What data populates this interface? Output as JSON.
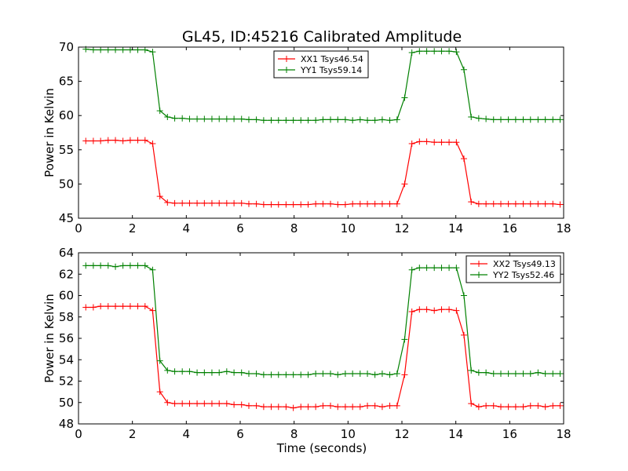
{
  "chart_data": [
    {
      "type": "line",
      "title": "GL45, ID:45216 Calibrated Amplitude",
      "xlabel": "",
      "ylabel": "Power in Kelvin",
      "xlim": [
        0,
        18
      ],
      "ylim": [
        45,
        70
      ],
      "xticks": [
        "0",
        "2",
        "4",
        "6",
        "8",
        "10",
        "12",
        "14",
        "16",
        "18"
      ],
      "yticks": [
        "45",
        "50",
        "55",
        "60",
        "65",
        "70"
      ],
      "grid": false,
      "legend": "upper-center",
      "x": [
        0.27,
        0.55,
        0.82,
        1.1,
        1.37,
        1.65,
        1.92,
        2.2,
        2.47,
        2.75,
        3.02,
        3.3,
        3.57,
        3.85,
        4.12,
        4.4,
        4.67,
        4.95,
        5.22,
        5.5,
        5.77,
        6.05,
        6.32,
        6.6,
        6.87,
        7.15,
        7.42,
        7.7,
        7.97,
        8.25,
        8.52,
        8.8,
        9.07,
        9.35,
        9.62,
        9.9,
        10.17,
        10.45,
        10.72,
        11.0,
        11.27,
        11.55,
        11.82,
        12.1,
        12.37,
        12.65,
        12.92,
        13.2,
        13.47,
        13.75,
        14.02,
        14.3,
        14.57,
        14.85,
        15.12,
        15.4,
        15.67,
        15.95,
        16.22,
        16.5,
        16.77,
        17.05,
        17.32,
        17.6,
        17.87
      ],
      "series": [
        {
          "name": "XX1 Tsys46.54",
          "color": "#ff0000",
          "values": [
            56.3,
            56.3,
            56.3,
            56.4,
            56.4,
            56.3,
            56.4,
            56.4,
            56.4,
            55.9,
            48.2,
            47.3,
            47.2,
            47.2,
            47.2,
            47.2,
            47.2,
            47.2,
            47.2,
            47.2,
            47.2,
            47.2,
            47.1,
            47.1,
            47.0,
            47.0,
            47.0,
            47.0,
            47.0,
            47.0,
            47.0,
            47.1,
            47.1,
            47.1,
            47.0,
            47.0,
            47.1,
            47.1,
            47.1,
            47.1,
            47.1,
            47.1,
            47.1,
            50.0,
            55.9,
            56.2,
            56.2,
            56.1,
            56.1,
            56.1,
            56.1,
            53.7,
            47.4,
            47.1,
            47.1,
            47.1,
            47.1,
            47.1,
            47.1,
            47.1,
            47.1,
            47.1,
            47.1,
            47.1,
            47.0
          ]
        },
        {
          "name": "YY1 Tsys59.14",
          "color": "#008000",
          "values": [
            69.7,
            69.6,
            69.6,
            69.6,
            69.6,
            69.6,
            69.6,
            69.6,
            69.6,
            69.3,
            60.7,
            59.8,
            59.6,
            59.6,
            59.5,
            59.5,
            59.5,
            59.5,
            59.5,
            59.5,
            59.5,
            59.5,
            59.4,
            59.4,
            59.3,
            59.3,
            59.3,
            59.3,
            59.3,
            59.3,
            59.3,
            59.3,
            59.4,
            59.4,
            59.4,
            59.4,
            59.3,
            59.4,
            59.3,
            59.3,
            59.4,
            59.3,
            59.4,
            62.6,
            69.2,
            69.4,
            69.4,
            69.4,
            69.4,
            69.4,
            69.3,
            66.7,
            59.8,
            59.6,
            59.5,
            59.4,
            59.4,
            59.4,
            59.4,
            59.4,
            59.4,
            59.4,
            59.4,
            59.4,
            59.4
          ]
        }
      ]
    },
    {
      "type": "line",
      "title": "",
      "xlabel": "Time (seconds)",
      "ylabel": "Power in Kelvin",
      "xlim": [
        0,
        18
      ],
      "ylim": [
        48,
        64
      ],
      "xticks": [
        "0",
        "2",
        "4",
        "6",
        "8",
        "10",
        "12",
        "14",
        "16",
        "18"
      ],
      "yticks": [
        "48",
        "50",
        "52",
        "54",
        "56",
        "58",
        "60",
        "62",
        "64"
      ],
      "grid": false,
      "legend": "top-right",
      "x": [
        0.27,
        0.55,
        0.82,
        1.1,
        1.37,
        1.65,
        1.92,
        2.2,
        2.47,
        2.75,
        3.02,
        3.3,
        3.57,
        3.85,
        4.12,
        4.4,
        4.67,
        4.95,
        5.22,
        5.5,
        5.77,
        6.05,
        6.32,
        6.6,
        6.87,
        7.15,
        7.42,
        7.7,
        7.97,
        8.25,
        8.52,
        8.8,
        9.07,
        9.35,
        9.62,
        9.9,
        10.17,
        10.45,
        10.72,
        11.0,
        11.27,
        11.55,
        11.82,
        12.1,
        12.37,
        12.65,
        12.92,
        13.2,
        13.47,
        13.75,
        14.02,
        14.3,
        14.57,
        14.85,
        15.12,
        15.4,
        15.67,
        15.95,
        16.22,
        16.5,
        16.77,
        17.05,
        17.32,
        17.6,
        17.87
      ],
      "series": [
        {
          "name": "XX2 Tsys49.13",
          "color": "#ff0000",
          "values": [
            58.9,
            58.9,
            59.0,
            59.0,
            59.0,
            59.0,
            59.0,
            59.0,
            59.0,
            58.6,
            51.0,
            50.0,
            49.9,
            49.9,
            49.9,
            49.9,
            49.9,
            49.9,
            49.9,
            49.9,
            49.8,
            49.8,
            49.7,
            49.7,
            49.6,
            49.6,
            49.6,
            49.6,
            49.5,
            49.6,
            49.6,
            49.6,
            49.7,
            49.7,
            49.6,
            49.6,
            49.6,
            49.6,
            49.7,
            49.7,
            49.6,
            49.7,
            49.7,
            52.6,
            58.5,
            58.7,
            58.7,
            58.6,
            58.7,
            58.7,
            58.6,
            56.3,
            49.9,
            49.6,
            49.7,
            49.7,
            49.6,
            49.6,
            49.6,
            49.6,
            49.7,
            49.7,
            49.6,
            49.7,
            49.7
          ]
        },
        {
          "name": "YY2 Tsys52.46",
          "color": "#008000",
          "values": [
            62.8,
            62.8,
            62.8,
            62.8,
            62.7,
            62.8,
            62.8,
            62.8,
            62.8,
            62.4,
            53.9,
            53.0,
            52.9,
            52.9,
            52.9,
            52.8,
            52.8,
            52.8,
            52.8,
            52.9,
            52.8,
            52.8,
            52.7,
            52.7,
            52.6,
            52.6,
            52.6,
            52.6,
            52.6,
            52.6,
            52.6,
            52.7,
            52.7,
            52.7,
            52.6,
            52.7,
            52.7,
            52.7,
            52.7,
            52.6,
            52.7,
            52.6,
            52.7,
            55.9,
            62.4,
            62.6,
            62.6,
            62.6,
            62.6,
            62.6,
            62.6,
            60.0,
            53.0,
            52.8,
            52.8,
            52.7,
            52.7,
            52.7,
            52.7,
            52.7,
            52.7,
            52.8,
            52.7,
            52.7,
            52.7
          ]
        }
      ]
    }
  ]
}
